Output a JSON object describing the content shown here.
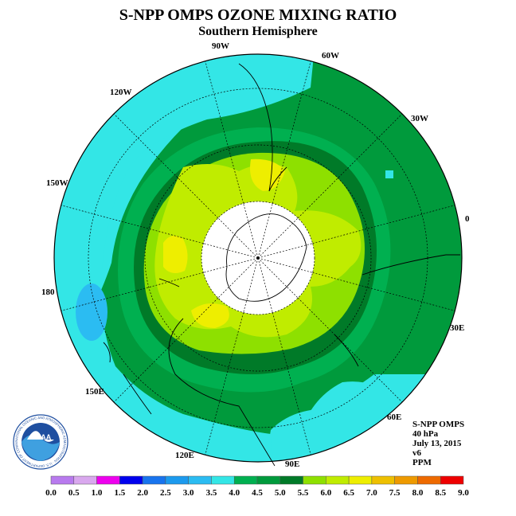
{
  "header": {
    "title": "S-NPP OMPS OZONE MIXING RATIO",
    "subtitle": "Southern Hemisphere"
  },
  "longitude_labels": {
    "lon_90w": "90W",
    "lon_60w": "60W",
    "lon_120w": "120W",
    "lon_30w": "30W",
    "lon_150w": "150W",
    "lon_0": "0",
    "lon_180": "180",
    "lon_30e": "30E",
    "lon_150e": "150E",
    "lon_60e": "60E",
    "lon_120e": "120E",
    "lon_90e": "90E"
  },
  "info": {
    "instrument": "S-NPP OMPS",
    "level": "40 hPa",
    "date": "July 13, 2015",
    "version": "v6",
    "units": "PPM"
  },
  "colorbar": {
    "ticks": [
      "0.0",
      "0.5",
      "1.0",
      "1.5",
      "2.0",
      "2.5",
      "3.0",
      "3.5",
      "4.0",
      "4.5",
      "5.0",
      "5.5",
      "6.0",
      "6.5",
      "7.0",
      "7.5",
      "8.0",
      "8.5",
      "9.0"
    ],
    "colors": [
      "#b87aee",
      "#d9a8ee",
      "#ee00ee",
      "#0000ee",
      "#1874ee",
      "#1c9aee",
      "#2bbcf2",
      "#33e6e6",
      "#00b050",
      "#009a3c",
      "#007a28",
      "#8ee000",
      "#c0ec00",
      "#eeee00",
      "#eec000",
      "#ee9a00",
      "#ee6a00",
      "#ee0000",
      "#8b5a3c"
    ]
  },
  "logo": {
    "text": "NOAA",
    "ring_text": "NATIONAL OCEANIC AND ATMOSPHERIC ADMINISTRATION · U.S. DEPARTMENT OF COMMERCE"
  }
}
